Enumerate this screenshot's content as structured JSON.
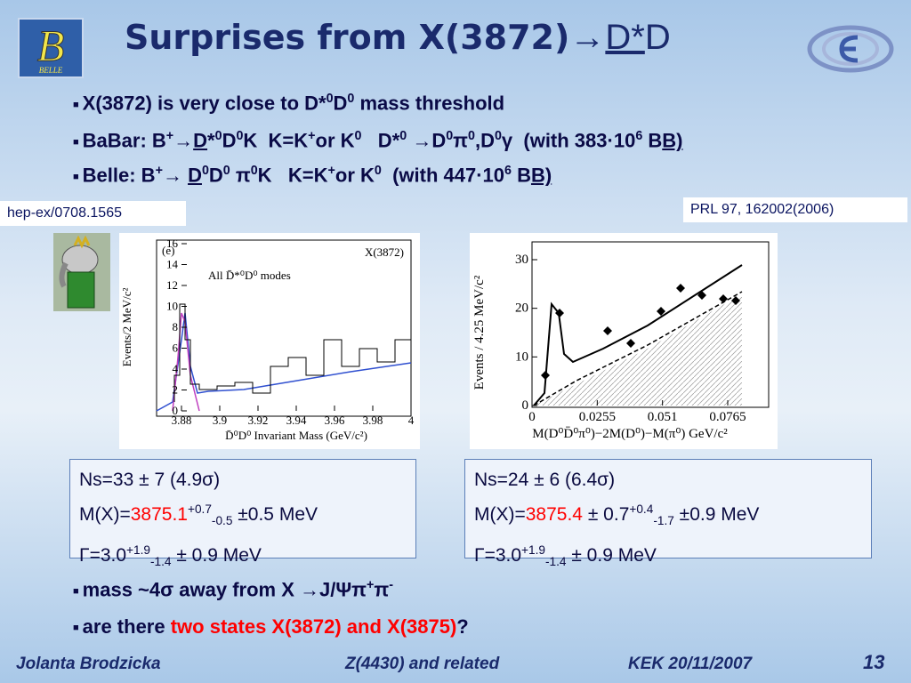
{
  "title": [
    [
      "Surprises from X(3872)",
      "b"
    ],
    [
      "→",
      ""
    ],
    [
      "D*",
      "u"
    ],
    [
      "D",
      ""
    ]
  ],
  "logo": {
    "letter": "B",
    "text": "BELLE"
  },
  "bullets_top": [
    [
      [
        "X(3872) is very close to D*",
        ""
      ],
      [
        "0",
        "sup"
      ],
      [
        "D",
        ""
      ],
      [
        "0",
        "sup"
      ],
      [
        " mass threshold",
        ""
      ]
    ],
    [
      [
        "BaBar: B",
        ""
      ],
      [
        "+",
        "sup"
      ],
      [
        "→",
        ""
      ],
      [
        "D",
        "u"
      ],
      [
        "*",
        ""
      ],
      [
        "0",
        "sup"
      ],
      [
        "D",
        ""
      ],
      [
        "0",
        "sup"
      ],
      [
        "K  K=K",
        ""
      ],
      [
        "+",
        "sup"
      ],
      [
        "or K",
        ""
      ],
      [
        "0",
        "sup"
      ],
      [
        "   D*",
        ""
      ],
      [
        "0",
        "sup"
      ],
      [
        " →D",
        ""
      ],
      [
        "0",
        "sup"
      ],
      [
        "π",
        ""
      ],
      [
        "0",
        "sup"
      ],
      [
        ",D",
        ""
      ],
      [
        "0",
        "sup"
      ],
      [
        "γ  (with 383·10",
        ""
      ],
      [
        "6",
        "sup"
      ],
      [
        " B",
        ""
      ],
      [
        "B)",
        "u"
      ]
    ],
    [
      [
        "Belle: B",
        ""
      ],
      [
        "+",
        "sup"
      ],
      [
        "→ ",
        ""
      ],
      [
        "D",
        "u"
      ],
      [
        "0",
        "sup"
      ],
      [
        "D",
        ""
      ],
      [
        "0",
        "sup"
      ],
      [
        " π",
        ""
      ],
      [
        "0",
        "sup"
      ],
      [
        "K   K=K",
        ""
      ],
      [
        "+",
        "sup"
      ],
      [
        "or K",
        ""
      ],
      [
        "0",
        "sup"
      ],
      [
        "  (with 447·10",
        ""
      ],
      [
        "6",
        "sup"
      ],
      [
        " B",
        ""
      ],
      [
        "B)",
        "u"
      ]
    ]
  ],
  "ref_left": "hep-ex/0708.1565",
  "ref_right": "PRL 97, 162002(2006)",
  "plot_left": {
    "panel": "(e)",
    "label": "X(3872)",
    "legend": "All D̄*⁰D⁰ modes",
    "ylabel": "Events/2 MeV/c²",
    "xlabel": "D̄⁰D⁰ Invariant Mass (GeV/c²)",
    "yticks": [
      "0",
      "2",
      "4",
      "6",
      "8",
      "10",
      "12",
      "14",
      "16"
    ],
    "xticks": [
      "3.88",
      "3.9",
      "3.92",
      "3.94",
      "3.96",
      "3.98",
      "4"
    ]
  },
  "plot_right": {
    "ylabel": "Events / 4.25 MeV/c²",
    "xlabel": "M(D⁰D̄⁰π⁰)−2M(D⁰)−M(π⁰) GeV/c²",
    "yticks": [
      "0",
      "10",
      "20",
      "30"
    ],
    "xticks": [
      "0",
      "0.0255",
      "0.051",
      "0.0765"
    ]
  },
  "box_left": [
    [
      [
        "Ns=33 ± 7 (4.9σ)",
        ""
      ]
    ],
    [
      [
        "M(X)=",
        ""
      ],
      [
        "3875.1",
        "red"
      ],
      [
        "+0.7",
        "sup"
      ],
      [
        "-0.5",
        "sub"
      ],
      [
        " ±0.5 MeV",
        ""
      ]
    ],
    [
      [
        "Γ=3.0",
        ""
      ],
      [
        "+1.9",
        "sup"
      ],
      [
        "-1.4",
        "sub"
      ],
      [
        " ± 0.9 MeV",
        ""
      ]
    ]
  ],
  "box_right": [
    [
      [
        "Ns=24 ± 6 (6.4σ)",
        ""
      ]
    ],
    [
      [
        "M(X)=",
        ""
      ],
      [
        "3875.4",
        "red"
      ],
      [
        " ± 0.7",
        ""
      ],
      [
        "+0.4",
        "sup"
      ],
      [
        "-1.7",
        "sub"
      ],
      [
        " ±0.9 MeV",
        ""
      ]
    ],
    [
      [
        "Γ=3.0",
        ""
      ],
      [
        "+1.9",
        "sup"
      ],
      [
        "-1.4",
        "sub"
      ],
      [
        " ± 0.9 MeV",
        ""
      ]
    ]
  ],
  "bullets_bottom": [
    [
      [
        "mass ",
        ""
      ],
      [
        "~",
        ""
      ],
      [
        "4σ away from X →J/Ψπ",
        ""
      ],
      [
        "+",
        "sup"
      ],
      [
        "π",
        ""
      ],
      [
        "-",
        "sup"
      ]
    ],
    [
      [
        "are there ",
        ""
      ],
      [
        "two states X(3872) and X(3875)",
        "red"
      ],
      [
        "?",
        ""
      ]
    ]
  ],
  "footer": {
    "author": "Jolanta Brodzicka",
    "topic": "Z(4430) and related",
    "event": "KEK 20/11/2007",
    "page": "13"
  }
}
